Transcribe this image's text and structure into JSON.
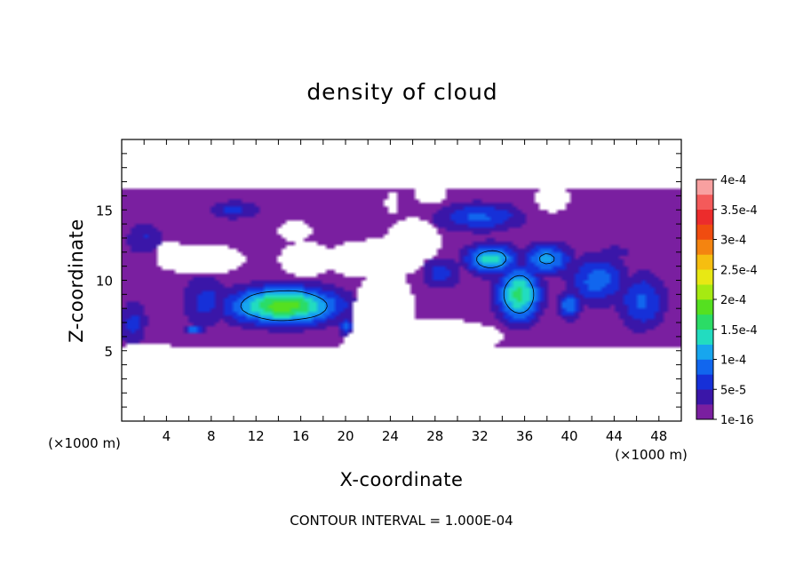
{
  "chart_data": {
    "type": "heatmap",
    "title": "density of cloud",
    "xlabel": "X-coordinate",
    "ylabel": "Z-coordinate",
    "x_units": "(×1000 m)",
    "y_units": "(×1000 m)",
    "xlim": [
      0,
      50
    ],
    "ylim": [
      0,
      20
    ],
    "x_ticks": [
      4,
      8,
      12,
      16,
      20,
      24,
      28,
      32,
      36,
      40,
      44,
      48
    ],
    "y_ticks": [
      5,
      10,
      15
    ],
    "colorbar": {
      "labels": [
        "1e-16",
        "5e-5",
        "1e-4",
        "1.5e-4",
        "2e-4",
        "2.5e-4",
        "3e-4",
        "3.5e-4",
        "4e-4"
      ],
      "colors": [
        "#7a1fa0",
        "#3a16a8",
        "#1630d8",
        "#1166ee",
        "#17a6ee",
        "#22dcc0",
        "#2bdc66",
        "#55e020",
        "#a6ea12",
        "#e8e814",
        "#f6be10",
        "#f48410",
        "#f04c10",
        "#ec2c2c",
        "#f45a5a",
        "#f8a0a0"
      ],
      "range": [
        0,
        0.0004
      ]
    },
    "contour_interval_label": "CONTOUR INTERVAL = 1.000E-04",
    "field_top_z": 16.5,
    "blobs": [
      {
        "x": 14.5,
        "z": 8.2,
        "rx": 5.5,
        "rz": 1.5,
        "v": 0.00019
      },
      {
        "x": 14.0,
        "z": 8.3,
        "rx": 3.8,
        "rz": 0.9,
        "v": 9e-05
      },
      {
        "x": 33.0,
        "z": 11.5,
        "rx": 2.6,
        "rz": 1.2,
        "v": 0.00014
      },
      {
        "x": 35.5,
        "z": 9.0,
        "rx": 2.2,
        "rz": 2.2,
        "v": 0.00016
      },
      {
        "x": 38.0,
        "z": 11.5,
        "rx": 2.5,
        "rz": 1.3,
        "v": 0.00011
      },
      {
        "x": 40.0,
        "z": 8.2,
        "rx": 1.2,
        "rz": 1.1,
        "v": 0.0001
      },
      {
        "x": 42.5,
        "z": 10.0,
        "rx": 3.0,
        "rz": 2.0,
        "v": 9e-05
      },
      {
        "x": 46.5,
        "z": 8.5,
        "rx": 2.5,
        "rz": 2.3,
        "v": 8e-05
      },
      {
        "x": 32.0,
        "z": 14.5,
        "rx": 4.5,
        "rz": 1.2,
        "v": 8e-05
      },
      {
        "x": 28.5,
        "z": 10.5,
        "rx": 2.2,
        "rz": 1.4,
        "v": 6e-05
      },
      {
        "x": 10.0,
        "z": 15.0,
        "rx": 2.5,
        "rz": 0.8,
        "v": 6e-05
      },
      {
        "x": 2.0,
        "z": 13.0,
        "rx": 2.2,
        "rz": 1.4,
        "v": 5e-05
      },
      {
        "x": 1.0,
        "z": 7.0,
        "rx": 1.5,
        "rz": 1.8,
        "v": 6e-05
      },
      {
        "x": 7.5,
        "z": 8.5,
        "rx": 2.5,
        "rz": 2.2,
        "v": 6e-05
      },
      {
        "x": 6.5,
        "z": 6.5,
        "rx": 1.0,
        "rz": 0.35,
        "v": 0.00011
      },
      {
        "x": 20.0,
        "z": 6.8,
        "rx": 0.8,
        "rz": 0.8,
        "v": 8e-05
      },
      {
        "x": 44.0,
        "z": 12.0,
        "rx": 1.5,
        "rz": 0.6,
        "v": 5e-05
      }
    ],
    "holes": [
      {
        "x": 28.5,
        "z": 6.0,
        "rx": 5.6,
        "rz": 1.2
      },
      {
        "x": 23.5,
        "z": 7.0,
        "rx": 2.9,
        "rz": 4.0
      },
      {
        "x": 22.5,
        "z": 11.5,
        "rx": 4.6,
        "rz": 1.4
      },
      {
        "x": 26.0,
        "z": 12.8,
        "rx": 2.5,
        "rz": 1.6
      },
      {
        "x": 16.5,
        "z": 11.5,
        "rx": 2.5,
        "rz": 1.2
      },
      {
        "x": 7.0,
        "z": 11.5,
        "rx": 4.0,
        "rz": 1.1
      },
      {
        "x": 15.5,
        "z": 13.5,
        "rx": 1.6,
        "rz": 0.7
      },
      {
        "x": 4.5,
        "z": 11.8,
        "rx": 1.5,
        "rz": 1.0
      },
      {
        "x": 2.5,
        "z": 5.0,
        "rx": 3.0,
        "rz": 0.5
      },
      {
        "x": 22.0,
        "z": 5.0,
        "rx": 2.5,
        "rz": 1.5
      },
      {
        "x": 38.5,
        "z": 15.8,
        "rx": 1.5,
        "rz": 1.0
      },
      {
        "x": 27.5,
        "z": 16.2,
        "rx": 1.5,
        "rz": 0.8
      },
      {
        "x": 24.2,
        "z": 15.5,
        "rx": 0.6,
        "rz": 0.7
      }
    ]
  }
}
